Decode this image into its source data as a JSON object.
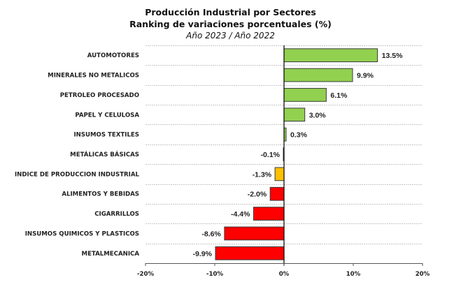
{
  "chart_data": {
    "type": "bar",
    "orientation": "horizontal",
    "title": "Producción Industrial por Sectores",
    "subtitle": "Ranking de variaciones porcentuales (%)",
    "subtitle2": "Año 2023 / Año 2022",
    "xlabel": "",
    "ylabel": "",
    "xlim": [
      -20,
      20
    ],
    "xticks": [
      -20,
      -10,
      0,
      10,
      20
    ],
    "xtick_labels": [
      "-20%",
      "-10%",
      "0%",
      "10%",
      "20%"
    ],
    "grid": "horizontal dashed",
    "legend": "none",
    "categories": [
      "AUTOMOTORES",
      "MINERALES NO METALICOS",
      "PETROLEO PROCESADO",
      "PAPEL Y CELULOSA",
      "INSUMOS TEXTILES",
      "METÁLICAS BÁSICAS",
      "INDICE DE PRODUCCION INDUSTRIAL",
      "ALIMENTOS Y BEBIDAS",
      "CIGARRILLOS",
      "INSUMOS QUIMICOS Y PLASTICOS",
      "METALMECANICA"
    ],
    "values": [
      13.5,
      9.9,
      6.1,
      3.0,
      0.3,
      -0.1,
      -1.3,
      -2.0,
      -4.4,
      -8.6,
      -9.9
    ],
    "data_labels": [
      "13.5%",
      "9.9%",
      "6.1%",
      "3.0%",
      "0.3%",
      "-0.1%",
      "-1.3%",
      "-2.0%",
      "-4.4%",
      "-8.6%",
      "-9.9%"
    ],
    "colors": [
      "#92d050",
      "#92d050",
      "#92d050",
      "#92d050",
      "#92d050",
      "#92d050",
      "#ffc000",
      "#ff0000",
      "#ff0000",
      "#ff0000",
      "#ff0000"
    ]
  },
  "colors": {
    "positive": "#92d050",
    "index": "#ffc000",
    "negative": "#ff0000",
    "bar_border": "#3a3a3a"
  }
}
